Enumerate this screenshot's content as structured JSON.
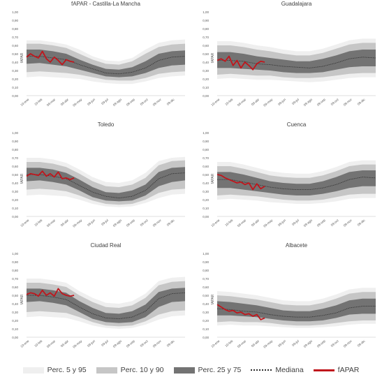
{
  "colors": {
    "p5_95": "#efefef",
    "p10_90": "#c6c6c6",
    "p25_75": "#737373",
    "median": "#2b2b2b",
    "fapar": "#c0161c",
    "axis_text": "#595959",
    "axis_line": "#bfbfbf"
  },
  "legend": [
    {
      "key": "p5_95",
      "label": "Perc. 5 y 95",
      "style": "box"
    },
    {
      "key": "p10_90",
      "label": "Perc. 10 y 90",
      "style": "box"
    },
    {
      "key": "p25_75",
      "label": "Perc. 25 y 75",
      "style": "box"
    },
    {
      "key": "median",
      "label": "Mediana",
      "style": "dotted"
    },
    {
      "key": "fapar",
      "label": "fAPAR",
      "style": "line"
    }
  ],
  "chart_data": [
    {
      "type": "area",
      "title": "fAPAR - Castilla-La Mancha",
      "ylabel": "fAPAR",
      "xlabel": "",
      "ylim": [
        0,
        1
      ],
      "yticks": [
        "0,00",
        "0,10",
        "0,20",
        "0,30",
        "0,40",
        "0,50",
        "0,60",
        "0,70",
        "0,80",
        "0,90",
        "1,00"
      ],
      "xticks": [
        "10-ene",
        "10-feb",
        "09-mar",
        "09-abr",
        "09-may",
        "09-jun",
        "09-jul",
        "09-ago",
        "09-sep",
        "09-oct",
        "09-nov",
        "09-dic"
      ],
      "x": [
        0,
        1,
        2,
        3,
        4,
        5,
        6,
        7,
        8,
        9,
        10,
        11,
        12
      ],
      "p5": [
        0.22,
        0.23,
        0.22,
        0.21,
        0.2,
        0.17,
        0.15,
        0.14,
        0.14,
        0.17,
        0.21,
        0.23,
        0.24
      ],
      "p10": [
        0.28,
        0.29,
        0.28,
        0.27,
        0.25,
        0.22,
        0.19,
        0.18,
        0.18,
        0.21,
        0.26,
        0.28,
        0.29
      ],
      "p25": [
        0.38,
        0.39,
        0.37,
        0.35,
        0.31,
        0.27,
        0.23,
        0.22,
        0.23,
        0.27,
        0.33,
        0.36,
        0.37
      ],
      "median": [
        0.47,
        0.47,
        0.45,
        0.43,
        0.37,
        0.32,
        0.27,
        0.26,
        0.28,
        0.33,
        0.42,
        0.46,
        0.47
      ],
      "p75": [
        0.55,
        0.55,
        0.53,
        0.5,
        0.43,
        0.37,
        0.32,
        0.31,
        0.34,
        0.41,
        0.5,
        0.53,
        0.54
      ],
      "p90": [
        0.62,
        0.62,
        0.6,
        0.57,
        0.5,
        0.43,
        0.38,
        0.37,
        0.41,
        0.5,
        0.58,
        0.61,
        0.62
      ],
      "p95": [
        0.66,
        0.66,
        0.64,
        0.61,
        0.55,
        0.47,
        0.42,
        0.41,
        0.45,
        0.55,
        0.63,
        0.66,
        0.67
      ],
      "fapar_x": [
        0,
        0.3,
        0.6,
        0.9,
        1.2,
        1.5,
        1.8,
        2.1,
        2.4,
        2.7,
        3.0,
        3.3,
        3.6
      ],
      "fapar": [
        0.46,
        0.5,
        0.47,
        0.45,
        0.53,
        0.44,
        0.4,
        0.46,
        0.42,
        0.37,
        0.43,
        0.41,
        0.4
      ]
    },
    {
      "type": "area",
      "title": "Guadalajara",
      "ylabel": "fAPAR",
      "xlabel": "",
      "ylim": [
        0,
        1
      ],
      "yticks": [
        "0,00",
        "0,10",
        "0,20",
        "0,30",
        "0,40",
        "0,50",
        "0,60",
        "0,70",
        "0,80",
        "0,90",
        "1,00"
      ],
      "xticks": [
        "10-ene",
        "10-feb",
        "09-mar",
        "09-abr",
        "09-may",
        "09-jun",
        "09-jul",
        "09-ago",
        "09-sep",
        "09-oct",
        "09-nov",
        "09-dic"
      ],
      "x": [
        0,
        1,
        2,
        3,
        4,
        5,
        6,
        7,
        8,
        9,
        10,
        11,
        12
      ],
      "p5": [
        0.2,
        0.21,
        0.2,
        0.19,
        0.19,
        0.18,
        0.17,
        0.16,
        0.17,
        0.19,
        0.21,
        0.22,
        0.22
      ],
      "p10": [
        0.25,
        0.26,
        0.25,
        0.24,
        0.24,
        0.22,
        0.21,
        0.21,
        0.22,
        0.24,
        0.26,
        0.27,
        0.27
      ],
      "p25": [
        0.33,
        0.33,
        0.32,
        0.31,
        0.3,
        0.28,
        0.27,
        0.27,
        0.28,
        0.31,
        0.34,
        0.35,
        0.35
      ],
      "median": [
        0.42,
        0.42,
        0.41,
        0.38,
        0.37,
        0.35,
        0.34,
        0.33,
        0.35,
        0.39,
        0.44,
        0.46,
        0.45
      ],
      "p75": [
        0.52,
        0.52,
        0.5,
        0.47,
        0.45,
        0.43,
        0.41,
        0.41,
        0.44,
        0.48,
        0.53,
        0.55,
        0.55
      ],
      "p90": [
        0.6,
        0.6,
        0.58,
        0.55,
        0.53,
        0.5,
        0.48,
        0.48,
        0.51,
        0.56,
        0.61,
        0.63,
        0.63
      ],
      "p95": [
        0.65,
        0.65,
        0.63,
        0.6,
        0.58,
        0.55,
        0.53,
        0.53,
        0.56,
        0.61,
        0.66,
        0.68,
        0.68
      ],
      "fapar_x": [
        0,
        0.3,
        0.6,
        0.9,
        1.2,
        1.5,
        1.8,
        2.1,
        2.4,
        2.7,
        3.0,
        3.3,
        3.6
      ],
      "fapar": [
        0.42,
        0.44,
        0.41,
        0.47,
        0.36,
        0.42,
        0.33,
        0.4,
        0.36,
        0.31,
        0.38,
        0.41,
        0.4
      ]
    },
    {
      "type": "area",
      "title": "Toledo",
      "ylabel": "fAPAR",
      "xlabel": "",
      "ylim": [
        0,
        1
      ],
      "yticks": [
        "0,00",
        "0,10",
        "0,20",
        "0,30",
        "0,40",
        "0,50",
        "0,60",
        "0,70",
        "0,80",
        "0,90",
        "1,00"
      ],
      "xticks": [
        "10-ene",
        "10-feb",
        "09-mar",
        "09-abr",
        "09-may",
        "09-jun",
        "09-jul",
        "09-ago",
        "09-sep",
        "09-oct",
        "09-nov",
        "09-dic"
      ],
      "x": [
        0,
        1,
        2,
        3,
        4,
        5,
        6,
        7,
        8,
        9,
        10,
        11,
        12
      ],
      "p5": [
        0.25,
        0.26,
        0.25,
        0.24,
        0.2,
        0.15,
        0.12,
        0.11,
        0.12,
        0.16,
        0.22,
        0.26,
        0.27
      ],
      "p10": [
        0.32,
        0.33,
        0.32,
        0.3,
        0.25,
        0.19,
        0.15,
        0.14,
        0.15,
        0.2,
        0.28,
        0.32,
        0.33
      ],
      "p25": [
        0.42,
        0.43,
        0.41,
        0.38,
        0.31,
        0.23,
        0.19,
        0.18,
        0.19,
        0.25,
        0.36,
        0.41,
        0.43
      ],
      "median": [
        0.5,
        0.5,
        0.48,
        0.45,
        0.37,
        0.29,
        0.24,
        0.22,
        0.24,
        0.31,
        0.45,
        0.51,
        0.52
      ],
      "p75": [
        0.58,
        0.58,
        0.56,
        0.52,
        0.44,
        0.35,
        0.29,
        0.28,
        0.31,
        0.38,
        0.53,
        0.58,
        0.59
      ],
      "p90": [
        0.65,
        0.65,
        0.63,
        0.59,
        0.51,
        0.42,
        0.36,
        0.35,
        0.38,
        0.46,
        0.61,
        0.66,
        0.67
      ],
      "p95": [
        0.7,
        0.7,
        0.68,
        0.64,
        0.56,
        0.47,
        0.41,
        0.4,
        0.43,
        0.52,
        0.66,
        0.7,
        0.71
      ],
      "fapar_x": [
        0,
        0.3,
        0.6,
        0.9,
        1.2,
        1.5,
        1.8,
        2.1,
        2.4,
        2.7,
        3.0,
        3.3,
        3.6
      ],
      "fapar": [
        0.48,
        0.51,
        0.5,
        0.49,
        0.54,
        0.48,
        0.51,
        0.47,
        0.53,
        0.45,
        0.46,
        0.44,
        0.46
      ]
    },
    {
      "type": "area",
      "title": "Cuenca",
      "ylabel": "fAPAR",
      "xlabel": "",
      "ylim": [
        0,
        1
      ],
      "yticks": [
        "0,00",
        "0,10",
        "0,20",
        "0,30",
        "0,40",
        "0,50",
        "0,60",
        "0,70",
        "0,80",
        "0,90",
        "1,00"
      ],
      "xticks": [
        "10-ene",
        "10-feb",
        "09-mar",
        "09-abr",
        "09-may",
        "09-jun",
        "09-jul",
        "09-ago",
        "09-sep",
        "09-oct",
        "09-nov",
        "09-dic"
      ],
      "x": [
        0,
        1,
        2,
        3,
        4,
        5,
        6,
        7,
        8,
        9,
        10,
        11,
        12
      ],
      "p5": [
        0.2,
        0.21,
        0.2,
        0.19,
        0.17,
        0.16,
        0.15,
        0.15,
        0.16,
        0.18,
        0.21,
        0.22,
        0.22
      ],
      "p10": [
        0.25,
        0.26,
        0.25,
        0.24,
        0.22,
        0.2,
        0.19,
        0.19,
        0.2,
        0.23,
        0.26,
        0.27,
        0.27
      ],
      "p25": [
        0.34,
        0.34,
        0.32,
        0.3,
        0.28,
        0.26,
        0.25,
        0.25,
        0.27,
        0.3,
        0.34,
        0.36,
        0.36
      ],
      "median": [
        0.44,
        0.44,
        0.41,
        0.38,
        0.35,
        0.33,
        0.32,
        0.32,
        0.34,
        0.38,
        0.44,
        0.47,
        0.46
      ],
      "p75": [
        0.53,
        0.53,
        0.5,
        0.46,
        0.42,
        0.4,
        0.39,
        0.39,
        0.42,
        0.47,
        0.53,
        0.55,
        0.55
      ],
      "p90": [
        0.6,
        0.6,
        0.57,
        0.53,
        0.49,
        0.47,
        0.46,
        0.46,
        0.49,
        0.54,
        0.6,
        0.62,
        0.62
      ],
      "p95": [
        0.65,
        0.65,
        0.62,
        0.58,
        0.54,
        0.52,
        0.51,
        0.51,
        0.54,
        0.59,
        0.65,
        0.67,
        0.67
      ],
      "fapar_x": [
        0,
        0.3,
        0.6,
        0.9,
        1.2,
        1.5,
        1.8,
        2.1,
        2.4,
        2.7,
        3.0,
        3.3,
        3.6
      ],
      "fapar": [
        0.5,
        0.49,
        0.46,
        0.44,
        0.42,
        0.4,
        0.41,
        0.38,
        0.4,
        0.32,
        0.39,
        0.33,
        0.36
      ]
    },
    {
      "type": "area",
      "title": "Ciudad Real",
      "ylabel": "fAPAR",
      "xlabel": "",
      "ylim": [
        0,
        1
      ],
      "yticks": [
        "0,00",
        "0,10",
        "0,20",
        "0,30",
        "0,40",
        "0,50",
        "0,60",
        "0,70",
        "0,80",
        "0,90",
        "1,00"
      ],
      "xticks": [
        "10-ene",
        "10-feb",
        "09-mar",
        "09-abr",
        "09-may",
        "09-jun",
        "09-jul",
        "09-ago",
        "09-sep",
        "09-oct",
        "09-nov",
        "09-dic"
      ],
      "x": [
        0,
        1,
        2,
        3,
        4,
        5,
        6,
        7,
        8,
        9,
        10,
        11,
        12
      ],
      "p5": [
        0.24,
        0.25,
        0.24,
        0.23,
        0.19,
        0.14,
        0.11,
        0.1,
        0.11,
        0.15,
        0.21,
        0.25,
        0.26
      ],
      "p10": [
        0.3,
        0.31,
        0.3,
        0.29,
        0.24,
        0.18,
        0.14,
        0.13,
        0.14,
        0.19,
        0.27,
        0.31,
        0.32
      ],
      "p25": [
        0.42,
        0.43,
        0.41,
        0.38,
        0.3,
        0.22,
        0.18,
        0.17,
        0.18,
        0.24,
        0.36,
        0.42,
        0.43
      ],
      "median": [
        0.5,
        0.5,
        0.48,
        0.45,
        0.36,
        0.28,
        0.23,
        0.22,
        0.24,
        0.31,
        0.46,
        0.52,
        0.53
      ],
      "p75": [
        0.58,
        0.58,
        0.56,
        0.53,
        0.43,
        0.35,
        0.29,
        0.28,
        0.31,
        0.39,
        0.54,
        0.58,
        0.59
      ],
      "p90": [
        0.65,
        0.65,
        0.63,
        0.6,
        0.5,
        0.42,
        0.36,
        0.35,
        0.38,
        0.47,
        0.62,
        0.66,
        0.67
      ],
      "p95": [
        0.7,
        0.7,
        0.68,
        0.65,
        0.55,
        0.47,
        0.41,
        0.4,
        0.43,
        0.52,
        0.67,
        0.71,
        0.72
      ],
      "fapar_x": [
        0,
        0.3,
        0.6,
        0.9,
        1.2,
        1.5,
        1.8,
        2.1,
        2.4,
        2.7,
        3.0,
        3.3,
        3.6
      ],
      "fapar": [
        0.51,
        0.53,
        0.52,
        0.49,
        0.56,
        0.5,
        0.53,
        0.49,
        0.58,
        0.52,
        0.5,
        0.49,
        0.5
      ]
    },
    {
      "type": "area",
      "title": "Albacete",
      "ylabel": "fAPAR",
      "xlabel": "",
      "ylim": [
        0,
        1
      ],
      "yticks": [
        "0,00",
        "0,10",
        "0,20",
        "0,30",
        "0,40",
        "0,50",
        "0,60",
        "0,70",
        "0,80",
        "0,90",
        "1,00"
      ],
      "xticks": [
        "10-ene",
        "10-feb",
        "09-mar",
        "09-abr",
        "09-may",
        "09-jun",
        "09-jul",
        "09-ago",
        "09-sep",
        "09-oct",
        "09-nov",
        "09-dic"
      ],
      "x": [
        0,
        1,
        2,
        3,
        4,
        5,
        6,
        7,
        8,
        9,
        10,
        11,
        12
      ],
      "p5": [
        0.14,
        0.15,
        0.14,
        0.14,
        0.13,
        0.12,
        0.11,
        0.11,
        0.12,
        0.13,
        0.15,
        0.16,
        0.16
      ],
      "p10": [
        0.18,
        0.19,
        0.18,
        0.18,
        0.17,
        0.15,
        0.14,
        0.14,
        0.15,
        0.17,
        0.19,
        0.2,
        0.2
      ],
      "p25": [
        0.26,
        0.26,
        0.25,
        0.24,
        0.22,
        0.2,
        0.19,
        0.19,
        0.2,
        0.23,
        0.27,
        0.28,
        0.28
      ],
      "median": [
        0.34,
        0.33,
        0.31,
        0.3,
        0.27,
        0.25,
        0.24,
        0.24,
        0.26,
        0.29,
        0.35,
        0.37,
        0.37
      ],
      "p75": [
        0.43,
        0.42,
        0.4,
        0.38,
        0.35,
        0.32,
        0.31,
        0.31,
        0.34,
        0.38,
        0.44,
        0.46,
        0.46
      ],
      "p90": [
        0.5,
        0.49,
        0.47,
        0.45,
        0.42,
        0.39,
        0.38,
        0.38,
        0.41,
        0.46,
        0.52,
        0.54,
        0.54
      ],
      "p95": [
        0.55,
        0.54,
        0.52,
        0.5,
        0.47,
        0.44,
        0.43,
        0.43,
        0.46,
        0.51,
        0.57,
        0.59,
        0.59
      ],
      "fapar_x": [
        0,
        0.3,
        0.6,
        0.9,
        1.2,
        1.5,
        1.8,
        2.1,
        2.4,
        2.7,
        3.0,
        3.3,
        3.6
      ],
      "fapar": [
        0.39,
        0.36,
        0.33,
        0.31,
        0.32,
        0.29,
        0.3,
        0.27,
        0.28,
        0.25,
        0.27,
        0.21,
        0.23
      ]
    }
  ]
}
